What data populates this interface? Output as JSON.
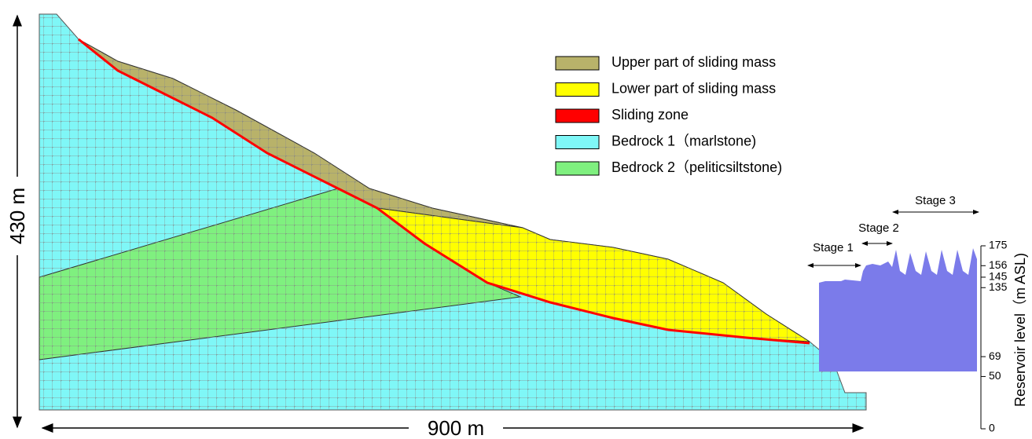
{
  "legend": [
    {
      "label": "Upper part of sliding mass",
      "color": "#b8b26a"
    },
    {
      "label": "Lower part of sliding mass",
      "color": "#ffff00"
    },
    {
      "label": "Sliding zone",
      "color": "#ff0000"
    },
    {
      "label": "Bedrock 1（marlstone)",
      "color": "#7ff7f7"
    },
    {
      "label": "Bedrock 2（peliticsiltstone)",
      "color": "#7ff07f"
    }
  ],
  "dimensions": {
    "height": "430  m",
    "width": "900  m"
  },
  "stages": [
    "Stage 1",
    "Stage 2",
    "Stage 3"
  ],
  "reservoir_axis": {
    "label": "Reservoir level（m ASL)",
    "ylim": [
      0,
      175
    ],
    "ticks": [
      0,
      50,
      69,
      135,
      145,
      156,
      175
    ]
  }
}
